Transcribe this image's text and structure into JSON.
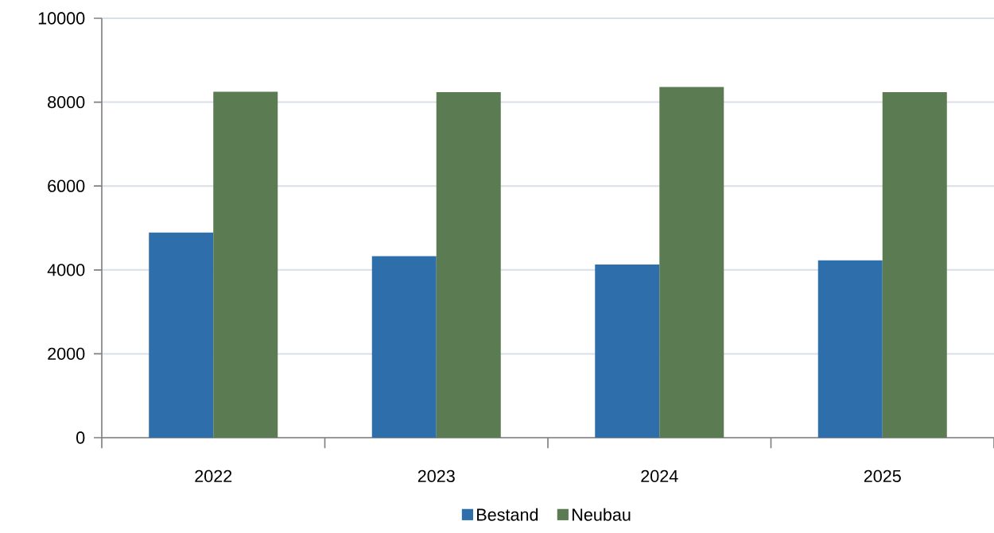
{
  "chart_data": {
    "type": "bar",
    "categories": [
      "2022",
      "2023",
      "2024",
      "2025"
    ],
    "series": [
      {
        "name": "Bestand",
        "color": "#2e6fab",
        "values": [
          4890,
          4330,
          4130,
          4230
        ]
      },
      {
        "name": "Neubau",
        "color": "#5b7b52",
        "values": [
          8250,
          8240,
          8360,
          8240
        ]
      }
    ],
    "ylim": [
      0,
      10000
    ],
    "yticks": [
      0,
      2000,
      4000,
      6000,
      8000,
      10000
    ],
    "grid": "y",
    "legend": "bottom"
  }
}
